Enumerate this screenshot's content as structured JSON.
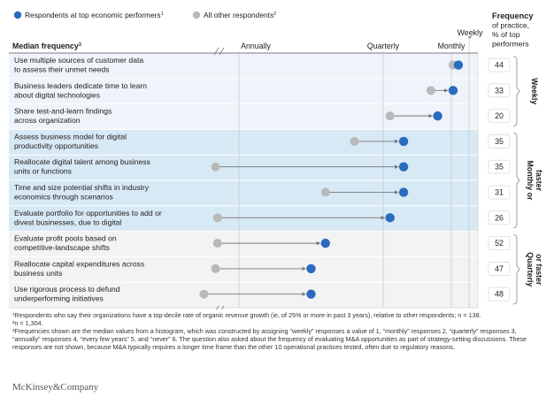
{
  "chart_data": {
    "type": "dumbbell",
    "legend": {
      "top": "Respondents at top economic performers",
      "top_sup": "1",
      "other": "All other respondents",
      "other_sup": "2",
      "top_color": "#2a6bc0",
      "other_color": "#b9b9b9"
    },
    "column_header": "Median frequency",
    "column_header_sup": "3",
    "x_axis": {
      "categories": [
        "Annually",
        "Quarterly",
        "Monthly",
        "Weekly"
      ],
      "values": [
        4,
        3,
        2,
        1
      ],
      "range": [
        5,
        1
      ],
      "reversed": true
    },
    "right_header": [
      "Frequency",
      "of practice,",
      "% of top",
      "performers"
    ],
    "groups": [
      {
        "label": "Weekly",
        "color": "#eef4fa"
      },
      {
        "label": "Monthly or faster",
        "color": "#d7e9f4"
      },
      {
        "label": "Quarterly or faster",
        "color": "#f3f3f3"
      }
    ],
    "rows": [
      {
        "group": 0,
        "lines": [
          "Use multiple sources of customer data",
          "to assess their unmet needs"
        ],
        "other": 1.9,
        "top": 1.6,
        "pct": "44"
      },
      {
        "group": 0,
        "lines": [
          "Business leaders dedicate time to learn",
          "about digital technologies"
        ],
        "other": 2.3,
        "top": 1.9,
        "pct": "33"
      },
      {
        "group": 0,
        "lines": [
          "Share test-and-learn findings",
          "across organization"
        ],
        "other": 2.9,
        "top": 2.2,
        "pct": "20"
      },
      {
        "group": 1,
        "lines": [
          "Assess business model for digital",
          "productivity opportunities"
        ],
        "other": 3.2,
        "top": 2.7,
        "pct": "35"
      },
      {
        "group": 1,
        "lines": [
          "Reallocate digital talent among business",
          "units or functions"
        ],
        "other": 4.6,
        "top": 2.7,
        "pct": "35"
      },
      {
        "group": 1,
        "lines": [
          "Time and size potential shifts in industry",
          "economics through scenarios"
        ],
        "other": 3.4,
        "top": 2.7,
        "pct": "31"
      },
      {
        "group": 1,
        "lines": [
          "Evaluate portfolio for opportunities to add or",
          "divest businesses, due to digital"
        ],
        "other": 4.55,
        "top": 2.9,
        "pct": "26"
      },
      {
        "group": 2,
        "lines": [
          "Evaluate profit pools based on",
          "competitive-landscape shifts"
        ],
        "other": 4.55,
        "top": 3.4,
        "pct": "52"
      },
      {
        "group": 2,
        "lines": [
          "Reallocate capital expenditures across",
          "business units"
        ],
        "other": 4.6,
        "top": 3.5,
        "pct": "47"
      },
      {
        "group": 2,
        "lines": [
          "Use rigorous process to defund",
          "underperforming initiatives"
        ],
        "other": 4.9,
        "top": 3.5,
        "pct": "48"
      }
    ]
  },
  "footnotes": [
    "¹Respondents who say their organizations have a top-decile rate of organic revenue growth (ie, of 25% or more in past 3 years), relative to other respondents; n = 138.",
    "²n = 1,304.",
    "³Frequencies shown are the median values from a histogram, which was constructed by assigning “weekly” responses a value of 1, “monthly” responses 2, “quarterly” responses 3, “annually” responses 4, “every few years” 5, and “never” 6. The question also asked about the frequency of evaluating M&A opportunities as part of strategy-setting discussions. These responses are not shown, because M&A typically requires a longer time frame than the other 10 operational practices tested, often due to regulatory reasons."
  ],
  "brand": "McKinsey&Company"
}
